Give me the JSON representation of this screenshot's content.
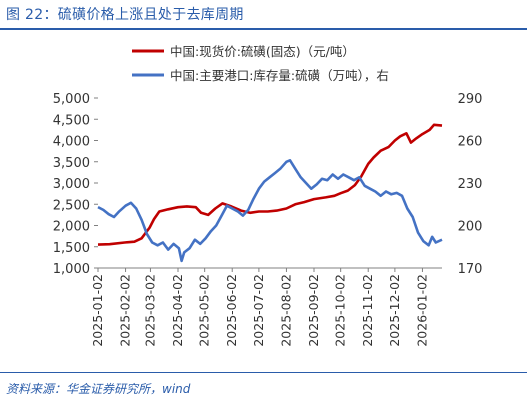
{
  "figure": {
    "title": "图 22：硫磺价格上涨且处于去库周期",
    "source": "资料来源：华金证券研究所，wind"
  },
  "chart_data": {
    "type": "line",
    "legend": {
      "placement": "top",
      "entries": [
        {
          "label": "中国:现货价:硫磺(固态)（元/吨）",
          "color": "#c00000"
        },
        {
          "label": "中国:主要港口:库存量:硫磺（万吨），右",
          "color": "#4472c4"
        }
      ]
    },
    "x_tick_labels": [
      "2025-01-02",
      "2025-02-02",
      "2025-03-02",
      "2025-04-02",
      "2025-05-02",
      "2025-06-02",
      "2025-07-02",
      "2025-08-02",
      "2025-09-02",
      "2025-10-02",
      "2025-11-02",
      "2025-12-02",
      "2026-01-02"
    ],
    "x_range": [
      "2025-01-02",
      "2026-01-24"
    ],
    "y_left": {
      "ylim": [
        1000,
        5000
      ],
      "ticks": [
        "1,000",
        "1,500",
        "2,000",
        "2,500",
        "3,000",
        "3,500",
        "4,000",
        "4,500",
        "5,000"
      ]
    },
    "y_right": {
      "ylim": [
        170,
        290
      ],
      "ticks": [
        "170",
        "200",
        "230",
        "260",
        "290"
      ]
    },
    "grid": false,
    "series": [
      {
        "name": "中国:现货价:硫磺(固态)（元/吨）",
        "axis": "left",
        "color": "#c00000",
        "points": [
          [
            "2025-01-02",
            1550
          ],
          [
            "2025-01-15",
            1560
          ],
          [
            "2025-02-01",
            1600
          ],
          [
            "2025-02-12",
            1620
          ],
          [
            "2025-02-20",
            1700
          ],
          [
            "2025-03-01",
            1950
          ],
          [
            "2025-03-06",
            2150
          ],
          [
            "2025-03-12",
            2330
          ],
          [
            "2025-03-22",
            2380
          ],
          [
            "2025-04-02",
            2430
          ],
          [
            "2025-04-12",
            2450
          ],
          [
            "2025-04-22",
            2430
          ],
          [
            "2025-04-28",
            2300
          ],
          [
            "2025-05-06",
            2250
          ],
          [
            "2025-05-14",
            2400
          ],
          [
            "2025-05-22",
            2520
          ],
          [
            "2025-06-01",
            2450
          ],
          [
            "2025-06-12",
            2350
          ],
          [
            "2025-06-22",
            2300
          ],
          [
            "2025-07-02",
            2330
          ],
          [
            "2025-07-12",
            2330
          ],
          [
            "2025-07-22",
            2350
          ],
          [
            "2025-08-02",
            2400
          ],
          [
            "2025-08-12",
            2500
          ],
          [
            "2025-08-22",
            2550
          ],
          [
            "2025-09-02",
            2620
          ],
          [
            "2025-09-15",
            2660
          ],
          [
            "2025-09-25",
            2700
          ],
          [
            "2025-10-02",
            2760
          ],
          [
            "2025-10-10",
            2820
          ],
          [
            "2025-10-18",
            2950
          ],
          [
            "2025-10-25",
            3150
          ],
          [
            "2025-11-02",
            3450
          ],
          [
            "2025-11-08",
            3600
          ],
          [
            "2025-11-16",
            3760
          ],
          [
            "2025-11-25",
            3850
          ],
          [
            "2025-12-02",
            4000
          ],
          [
            "2025-12-08",
            4100
          ],
          [
            "2025-12-15",
            4170
          ],
          [
            "2025-12-20",
            3950
          ],
          [
            "2025-12-26",
            4050
          ],
          [
            "2026-01-02",
            4150
          ],
          [
            "2026-01-10",
            4250
          ],
          [
            "2026-01-15",
            4370
          ],
          [
            "2026-01-24",
            4350
          ]
        ]
      },
      {
        "name": "中国:主要港口:库存量:硫磺（万吨），右",
        "axis": "right",
        "color": "#4472c4",
        "points": [
          [
            "2025-01-02",
            213
          ],
          [
            "2025-01-08",
            211
          ],
          [
            "2025-01-14",
            208
          ],
          [
            "2025-01-20",
            206
          ],
          [
            "2025-01-26",
            210
          ],
          [
            "2025-02-02",
            214
          ],
          [
            "2025-02-08",
            216
          ],
          [
            "2025-02-14",
            212
          ],
          [
            "2025-02-20",
            204
          ],
          [
            "2025-02-26",
            194
          ],
          [
            "2025-03-04",
            188
          ],
          [
            "2025-03-10",
            186
          ],
          [
            "2025-03-16",
            188
          ],
          [
            "2025-03-22",
            183
          ],
          [
            "2025-03-28",
            187
          ],
          [
            "2025-04-03",
            184
          ],
          [
            "2025-04-06",
            175
          ],
          [
            "2025-04-09",
            181
          ],
          [
            "2025-04-15",
            184
          ],
          [
            "2025-04-21",
            190
          ],
          [
            "2025-04-27",
            187
          ],
          [
            "2025-05-03",
            191
          ],
          [
            "2025-05-09",
            196
          ],
          [
            "2025-05-15",
            200
          ],
          [
            "2025-05-21",
            207
          ],
          [
            "2025-05-27",
            214
          ],
          [
            "2025-06-02",
            212
          ],
          [
            "2025-06-08",
            210
          ],
          [
            "2025-06-14",
            207
          ],
          [
            "2025-06-20",
            211
          ],
          [
            "2025-06-26",
            219
          ],
          [
            "2025-07-02",
            226
          ],
          [
            "2025-07-08",
            231
          ],
          [
            "2025-07-14",
            234
          ],
          [
            "2025-07-20",
            237
          ],
          [
            "2025-07-26",
            240
          ],
          [
            "2025-08-02",
            245
          ],
          [
            "2025-08-06",
            246
          ],
          [
            "2025-08-12",
            240
          ],
          [
            "2025-08-18",
            234
          ],
          [
            "2025-08-24",
            230
          ],
          [
            "2025-08-30",
            226
          ],
          [
            "2025-09-05",
            229
          ],
          [
            "2025-09-11",
            233
          ],
          [
            "2025-09-17",
            232
          ],
          [
            "2025-09-23",
            236
          ],
          [
            "2025-09-29",
            233
          ],
          [
            "2025-10-05",
            236
          ],
          [
            "2025-10-11",
            234
          ],
          [
            "2025-10-17",
            232
          ],
          [
            "2025-10-23",
            234
          ],
          [
            "2025-10-29",
            228
          ],
          [
            "2025-11-04",
            226
          ],
          [
            "2025-11-10",
            224
          ],
          [
            "2025-11-16",
            221
          ],
          [
            "2025-11-22",
            224
          ],
          [
            "2025-11-28",
            222
          ],
          [
            "2025-12-04",
            223
          ],
          [
            "2025-12-10",
            221
          ],
          [
            "2025-12-16",
            212
          ],
          [
            "2025-12-22",
            206
          ],
          [
            "2025-12-28",
            195
          ],
          [
            "2026-01-03",
            189
          ],
          [
            "2026-01-09",
            186
          ],
          [
            "2026-01-13",
            192
          ],
          [
            "2026-01-17",
            188
          ],
          [
            "2026-01-24",
            190
          ]
        ]
      }
    ]
  }
}
